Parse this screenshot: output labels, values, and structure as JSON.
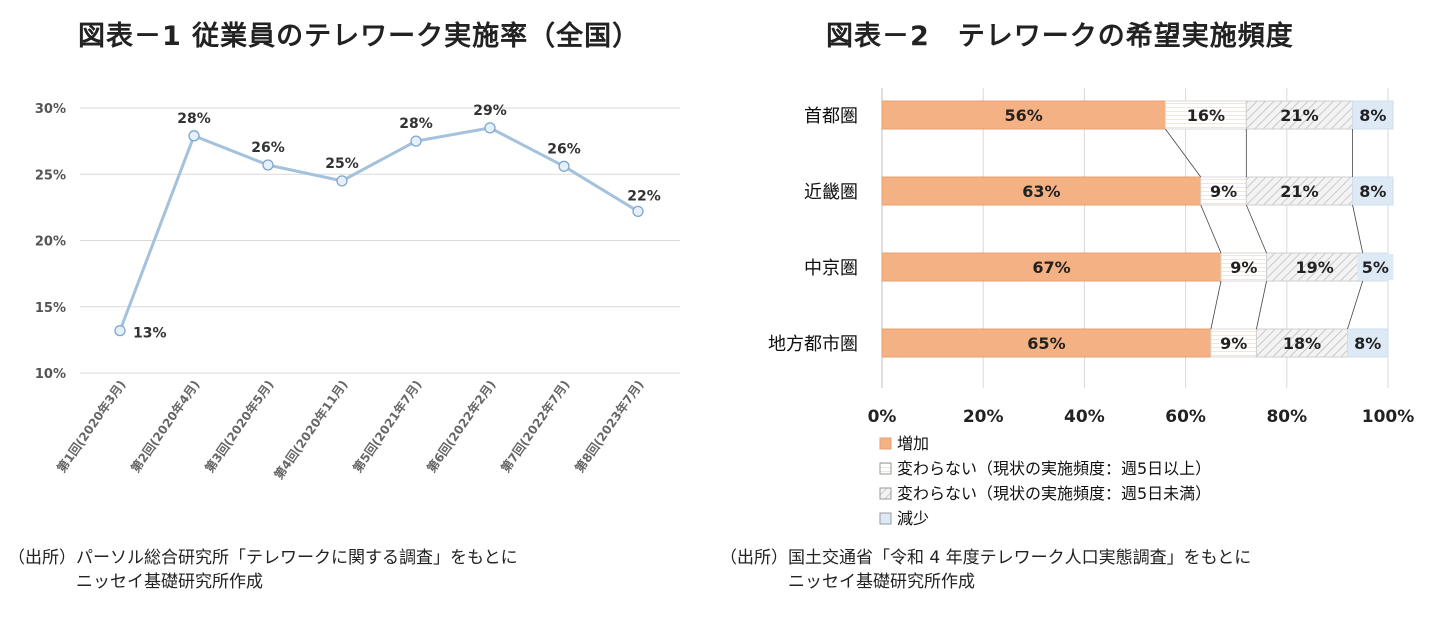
{
  "chart_data": [
    {
      "type": "line",
      "title": "図表－1 従業員のテレワーク実施率（全国）",
      "categories": [
        "第1回(2020年3月)",
        "第2回(2020年4月)",
        "第3回(2020年5月)",
        "第4回(2020年11月)",
        "第5回(2021年7月)",
        "第6回(2022年2月)",
        "第7回(2022年7月)",
        "第8回(2023年7月)"
      ],
      "values": [
        13.2,
        27.9,
        25.7,
        24.5,
        27.5,
        28.5,
        25.6,
        22.2
      ],
      "data_labels": [
        "13%",
        "28%",
        "26%",
        "25%",
        "28%",
        "29%",
        "26%",
        "22%"
      ],
      "yticks": [
        "10%",
        "15%",
        "20%",
        "25%",
        "30%"
      ],
      "ylim": [
        10,
        30
      ],
      "grid": true,
      "line_color": "#a4c2dc",
      "source": [
        "（出所）パーソル総合研究所「テレワークに関する調査」をもとに",
        "ニッセイ基礎研究所作成"
      ]
    },
    {
      "type": "bar",
      "orientation": "horizontal",
      "stacked": "percent",
      "title": "図表－2　テレワークの希望実施頻度",
      "categories": [
        "首都圏",
        "近畿圏",
        "中京圏",
        "地方都市圏"
      ],
      "series": [
        {
          "name": "増加",
          "values": [
            56,
            63,
            67,
            65
          ],
          "labels": [
            "56%",
            "63%",
            "67%",
            "65%"
          ],
          "color": "#f4b183"
        },
        {
          "name": "変わらない（現状の実施頻度：週5日以上）",
          "values": [
            16,
            9,
            9,
            9
          ],
          "labels": [
            "16%",
            "9%",
            "9%",
            "9%"
          ],
          "color": "#ffffff"
        },
        {
          "name": "変わらない（現状の実施頻度：週5日未満）",
          "values": [
            21,
            21,
            19,
            18
          ],
          "labels": [
            "21%",
            "21%",
            "19%",
            "18%"
          ],
          "color": "#ececec"
        },
        {
          "name": "減少",
          "values": [
            8,
            8,
            5,
            8
          ],
          "labels": [
            "8%",
            "8%",
            "5%",
            "8%"
          ],
          "color": "#dde9f5"
        }
      ],
      "xticks": [
        "0%",
        "20%",
        "40%",
        "60%",
        "80%",
        "100%"
      ],
      "xlim": [
        0,
        100
      ],
      "grid": true,
      "legend_position": "bottom-left",
      "series_lines": true,
      "source": [
        "（出所）国土交通省「令和 4 年度テレワーク人口実態調査」をもとに",
        "ニッセイ基礎研究所作成"
      ]
    }
  ]
}
